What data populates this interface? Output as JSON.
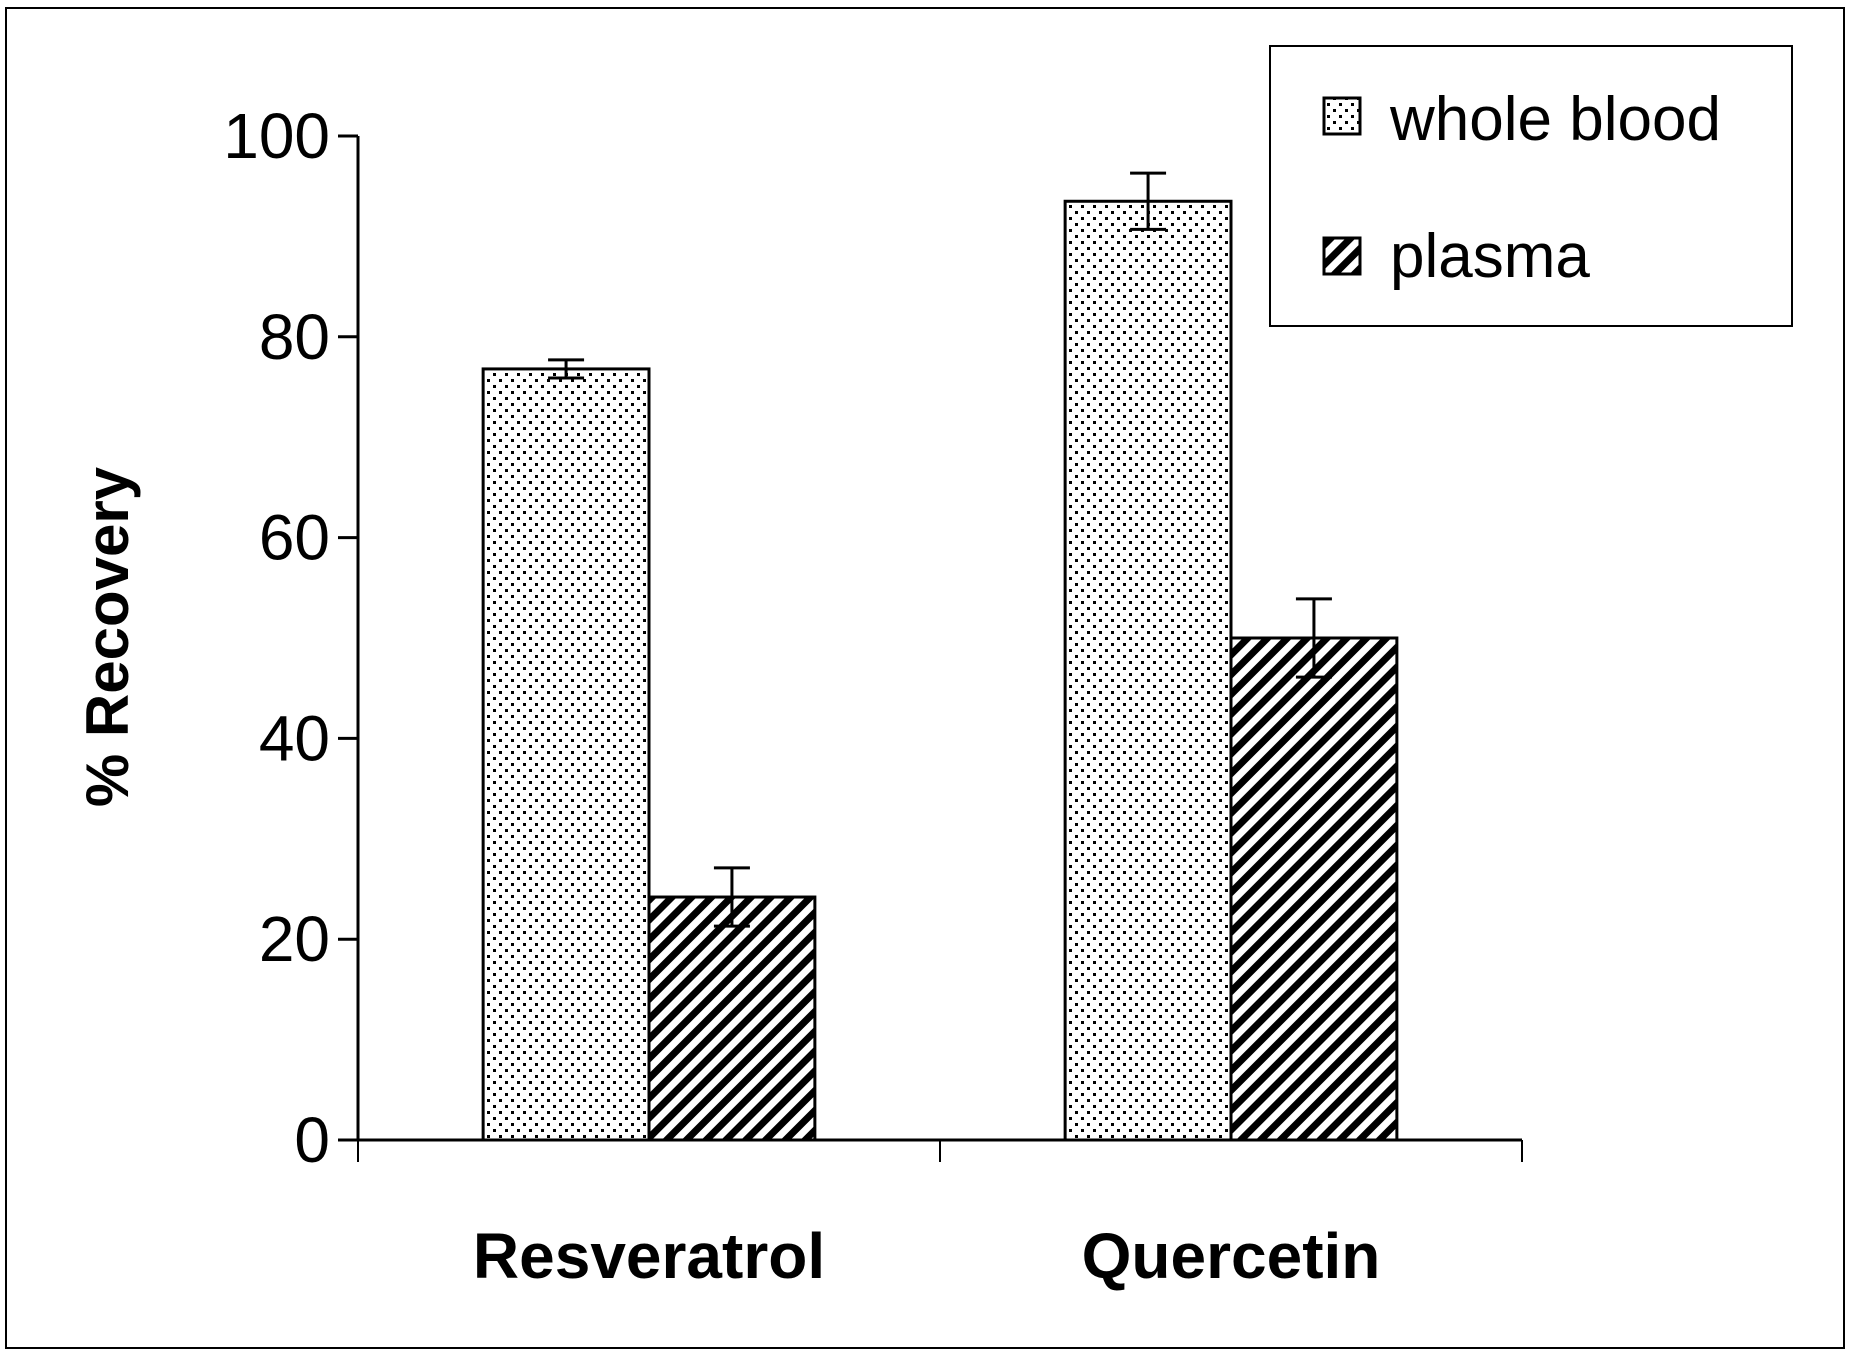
{
  "chart_data": {
    "type": "bar",
    "title": "",
    "xlabel": "",
    "ylabel": "% Recovery",
    "categories": [
      "Resveratrol",
      "Quercetin"
    ],
    "series": [
      {
        "name": "whole blood",
        "pattern": "dots",
        "values": [
          76.8,
          93.5
        ],
        "errors": [
          0.9,
          2.8
        ]
      },
      {
        "name": "plasma",
        "pattern": "diagonal-stripes",
        "values": [
          24.2,
          50.0
        ],
        "errors": [
          2.9,
          3.9
        ]
      }
    ],
    "ylim": [
      0,
      100
    ],
    "yticks": [
      0,
      20,
      40,
      60,
      80,
      100
    ],
    "grid": false,
    "legend_position": "top-right",
    "colors": {
      "bar_fill": "#ffffff",
      "ink": "#000000"
    }
  }
}
